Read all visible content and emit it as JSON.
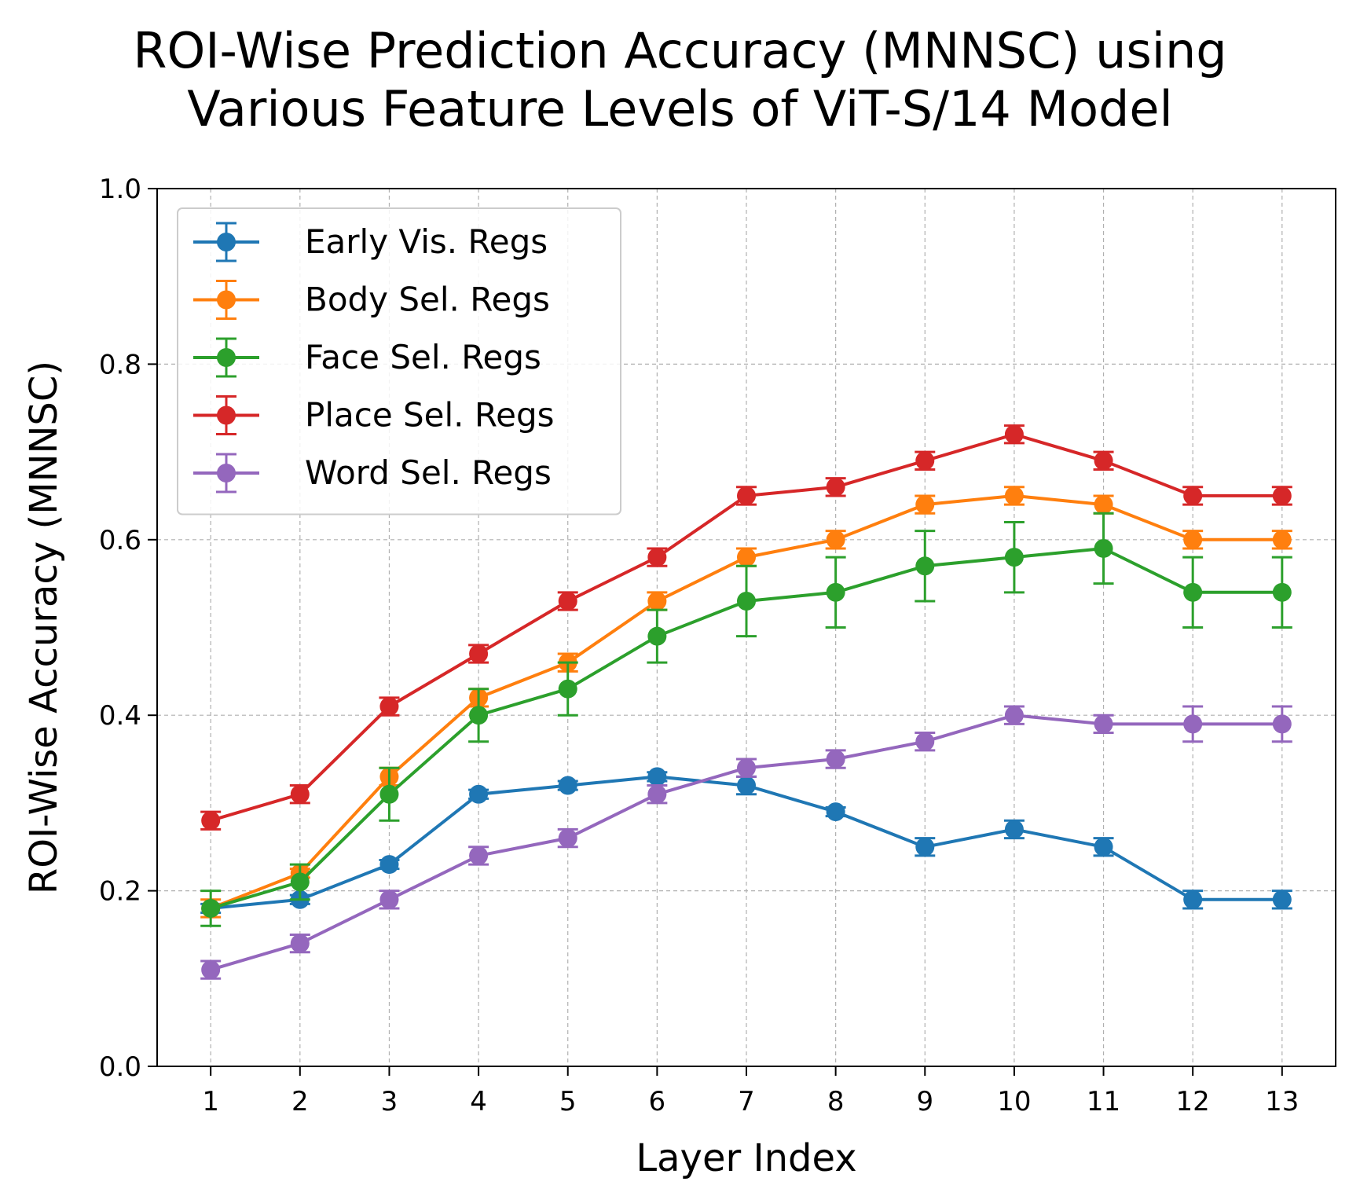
{
  "chart_data": {
    "type": "line",
    "title_lines": [
      "ROI-Wise Prediction Accuracy (MNNSC) using",
      "Various Feature Levels of ViT-S/14 Model"
    ],
    "xlabel": "Layer Index",
    "ylabel": "ROI-Wise Accuracy (MNNSC)",
    "x": [
      1,
      2,
      3,
      4,
      5,
      6,
      7,
      8,
      9,
      10,
      11,
      12,
      13
    ],
    "x_ticks": [
      "1",
      "2",
      "3",
      "4",
      "5",
      "6",
      "7",
      "8",
      "9",
      "10",
      "11",
      "12",
      "13"
    ],
    "xlim": [
      0.4,
      13.6
    ],
    "ylim": [
      0.0,
      1.0
    ],
    "y_ticks": [
      "0.0",
      "0.2",
      "0.4",
      "0.6",
      "0.8",
      "1.0"
    ],
    "grid": true,
    "legend_position": "top-left",
    "series": [
      {
        "name": "Early Vis. Regs",
        "color": "#1f77b4",
        "values": [
          0.18,
          0.19,
          0.23,
          0.31,
          0.32,
          0.33,
          0.32,
          0.29,
          0.25,
          0.27,
          0.25,
          0.19,
          0.19
        ],
        "errors": [
          0.005,
          0.005,
          0.005,
          0.005,
          0.005,
          0.005,
          0.01,
          0.005,
          0.01,
          0.01,
          0.01,
          0.01,
          0.01
        ]
      },
      {
        "name": "Body Sel. Regs",
        "color": "#ff7f0e",
        "values": [
          0.18,
          0.22,
          0.33,
          0.42,
          0.46,
          0.53,
          0.58,
          0.6,
          0.64,
          0.65,
          0.64,
          0.6,
          0.6
        ],
        "errors": [
          0.01,
          0.005,
          0.01,
          0.01,
          0.01,
          0.01,
          0.01,
          0.01,
          0.01,
          0.01,
          0.01,
          0.01,
          0.01
        ]
      },
      {
        "name": "Face Sel. Regs",
        "color": "#2ca02c",
        "values": [
          0.18,
          0.21,
          0.31,
          0.4,
          0.43,
          0.49,
          0.53,
          0.54,
          0.57,
          0.58,
          0.59,
          0.54,
          0.54
        ],
        "errors": [
          0.02,
          0.02,
          0.03,
          0.03,
          0.03,
          0.03,
          0.04,
          0.04,
          0.04,
          0.04,
          0.04,
          0.04,
          0.04
        ]
      },
      {
        "name": "Place Sel. Regs",
        "color": "#d62728",
        "values": [
          0.28,
          0.31,
          0.41,
          0.47,
          0.53,
          0.58,
          0.65,
          0.66,
          0.69,
          0.72,
          0.69,
          0.65,
          0.65
        ],
        "errors": [
          0.01,
          0.01,
          0.01,
          0.01,
          0.01,
          0.01,
          0.01,
          0.01,
          0.01,
          0.01,
          0.01,
          0.01,
          0.01
        ]
      },
      {
        "name": "Word Sel. Regs",
        "color": "#9467bd",
        "values": [
          0.11,
          0.14,
          0.19,
          0.24,
          0.26,
          0.31,
          0.34,
          0.35,
          0.37,
          0.4,
          0.39,
          0.39,
          0.39
        ],
        "errors": [
          0.01,
          0.01,
          0.01,
          0.01,
          0.01,
          0.01,
          0.01,
          0.01,
          0.01,
          0.01,
          0.01,
          0.02,
          0.02
        ]
      }
    ]
  }
}
